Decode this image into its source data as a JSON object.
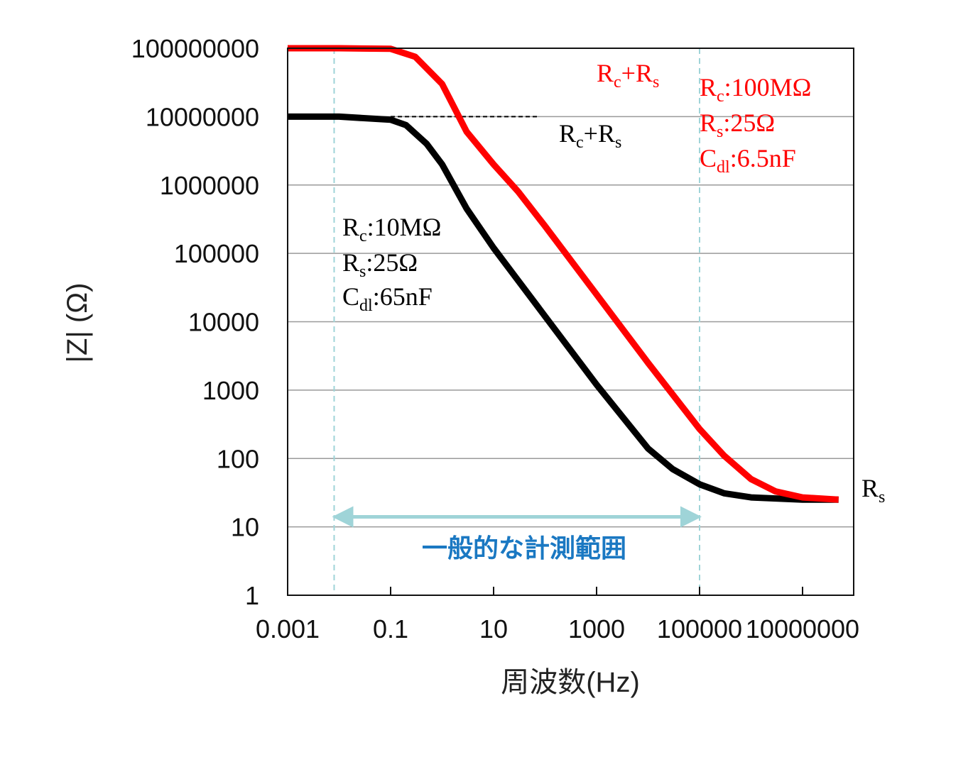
{
  "chart_data": {
    "type": "line",
    "xlabel": "周波数(Hz)",
    "ylabel": "|Z| (Ω)",
    "x_scale": "log",
    "y_scale": "log",
    "xlim": [
      0.001,
      10000000
    ],
    "ylim": [
      1,
      100000000
    ],
    "x_ticks": [
      "0.001",
      "0.1",
      "10",
      "1000",
      "100000",
      "10000000"
    ],
    "y_ticks": [
      "100000000",
      "10000000",
      "1000000",
      "100000",
      "10000",
      "1000",
      "100",
      "10",
      "1"
    ],
    "grid": "horizontal",
    "series": [
      {
        "color": "#ff0000",
        "x": [
          0.001,
          0.01,
          0.1,
          0.3,
          1,
          3,
          10,
          30,
          100,
          1000,
          10000,
          100000,
          300000,
          1000000,
          3000000,
          10000000,
          50000000
        ],
        "y": [
          100000000,
          100000000,
          98000000,
          75000000,
          30000000,
          6000000,
          2000000,
          800000,
          250000,
          25000,
          2500,
          270,
          110,
          50,
          33,
          27,
          25
        ]
      },
      {
        "color": "#000000",
        "x": [
          0.001,
          0.01,
          0.1,
          0.2,
          0.5,
          1,
          3,
          10,
          100,
          1000,
          10000,
          30000,
          100000,
          300000,
          1000000,
          10000000,
          50000000
        ],
        "y": [
          10000000,
          10000000,
          9000000,
          7500000,
          4000000,
          2000000,
          450000,
          120000,
          12000,
          1200,
          140,
          70,
          42,
          31,
          27,
          25,
          25
        ]
      }
    ],
    "reference_lines": [
      {
        "color": "#ff0000",
        "y": 100000000,
        "x_from": 0.1,
        "x_to": 200
      },
      {
        "color": "#000000",
        "y": 10000000,
        "x_from": 0.1,
        "x_to": 70
      }
    ],
    "vertical_markers": [
      0.008,
      100000
    ],
    "range_arrow": {
      "x_from": 0.008,
      "x_to": 100000,
      "y": 14,
      "label": "一般的な計測範囲",
      "color": "#9fd4d8",
      "label_color": "#1a78c2"
    },
    "annotations": {
      "red_sum_label": {
        "main1": "R",
        "sub1": "c",
        "main2": "+R",
        "sub2": "s"
      },
      "black_sum_label": {
        "main1": "R",
        "sub1": "c",
        "main2": "+R",
        "sub2": "s"
      },
      "red_params": [
        {
          "main": "R",
          "sub": "c",
          "rest": ":100MΩ"
        },
        {
          "main": "R",
          "sub": "s",
          "rest": ":25Ω"
        },
        {
          "main": "C",
          "sub": "dl",
          "rest": ":6.5nF"
        }
      ],
      "black_params": [
        {
          "main": "R",
          "sub": "c",
          "rest": ":10MΩ"
        },
        {
          "main": "R",
          "sub": "s",
          "rest": ":25Ω"
        },
        {
          "main": "C",
          "sub": "dl",
          "rest": ":65nF"
        }
      ],
      "rs_label": {
        "main": "R",
        "sub": "s"
      }
    }
  }
}
